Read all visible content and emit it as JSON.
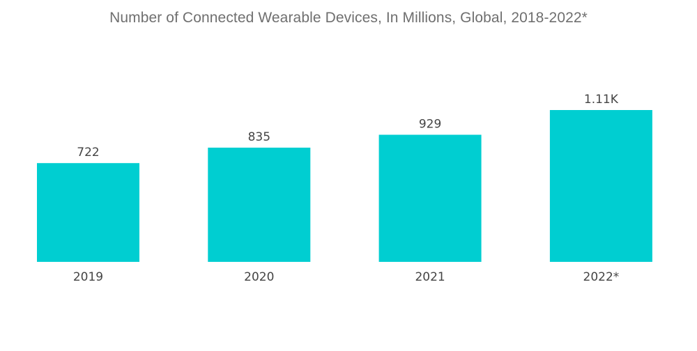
{
  "chart_data": {
    "type": "bar",
    "title": "Number of Connected Wearable Devices, In Millions, Global, 2018-2022*",
    "categories": [
      "2019",
      "2020",
      "2021",
      "2022*"
    ],
    "values": [
      722,
      835,
      929,
      1110
    ],
    "data_labels": [
      "722",
      "835",
      "929",
      "1.11K"
    ],
    "xlabel": "",
    "ylabel": "",
    "ylim": [
      0,
      1110
    ],
    "grid": false,
    "bar_color": "#00ced1"
  }
}
